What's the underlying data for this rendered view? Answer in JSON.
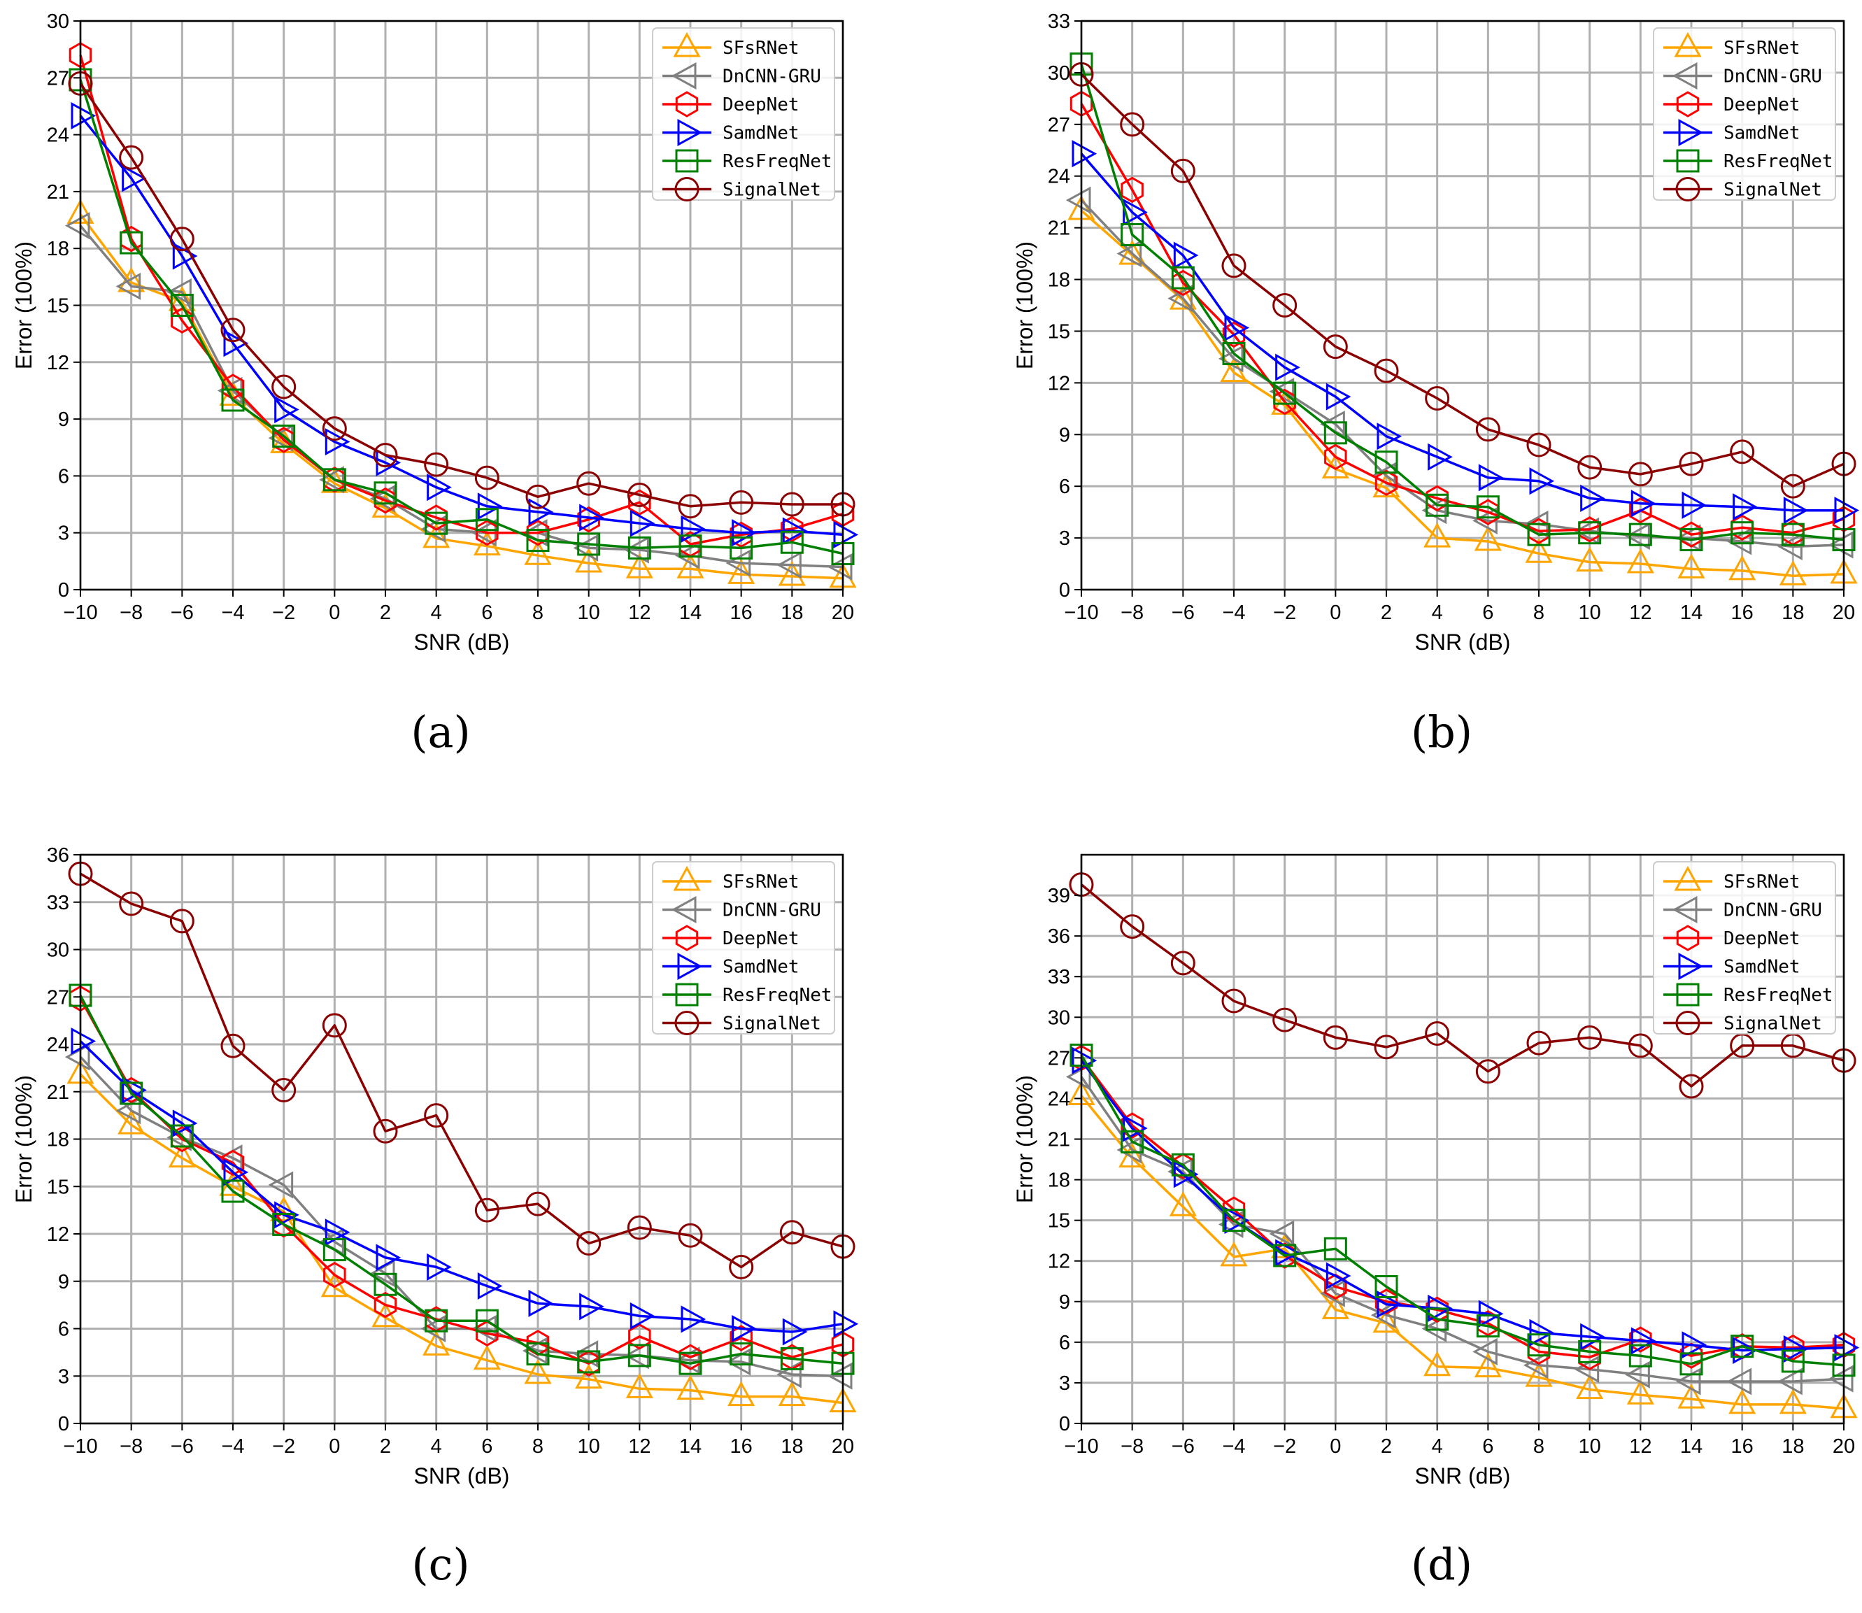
{
  "colors": {
    "SFsRNet": "#FFA500",
    "DnCNN-GRU": "#808080",
    "DeepNet": "#FF0000",
    "SamdNet": "#0000FF",
    "ResFreqNet": "#008000",
    "SignalNet": "#8B0000"
  },
  "markers": {
    "SFsRNet": "triangle-up",
    "DnCNN-GRU": "triangle-left",
    "DeepNet": "hexagon",
    "SamdNet": "triangle-right",
    "ResFreqNet": "square",
    "SignalNet": "circle"
  },
  "chart_data": [
    {
      "type": "line",
      "caption": "(a)",
      "xlabel": "SNR (dB)",
      "ylabel": "Error (100%)",
      "xlim": [
        -10,
        20
      ],
      "ylim": [
        0,
        30
      ],
      "xticks": [
        -10,
        -8,
        -6,
        -4,
        -2,
        0,
        2,
        4,
        6,
        8,
        10,
        12,
        14,
        16,
        18,
        20
      ],
      "yticks": [
        0,
        3,
        6,
        9,
        12,
        15,
        18,
        21,
        24,
        27,
        30
      ],
      "grid": true,
      "legend_position": "top-right",
      "x": [
        -10,
        -8,
        -6,
        -4,
        -2,
        0,
        2,
        4,
        6,
        8,
        10,
        12,
        14,
        16,
        18,
        20
      ],
      "series": [
        {
          "name": "SFsRNet",
          "values": [
            19.8,
            16.2,
            15.2,
            10.2,
            7.7,
            5.6,
            4.3,
            2.7,
            2.3,
            1.8,
            1.4,
            1.1,
            1.1,
            0.8,
            0.7,
            0.6
          ]
        },
        {
          "name": "DnCNN-GRU",
          "values": [
            19.2,
            16.0,
            15.7,
            10.5,
            8.0,
            5.8,
            4.8,
            3.2,
            3.0,
            3.0,
            2.2,
            2.1,
            1.8,
            1.4,
            1.3,
            1.2
          ]
        },
        {
          "name": "DeepNet",
          "values": [
            28.2,
            18.5,
            14.2,
            10.7,
            7.9,
            5.8,
            4.7,
            3.8,
            3.0,
            3.0,
            3.7,
            4.6,
            2.4,
            2.9,
            3.2,
            4.0
          ]
        },
        {
          "name": "SamdNet",
          "values": [
            25.0,
            21.7,
            17.6,
            13.0,
            9.5,
            7.8,
            6.7,
            5.4,
            4.4,
            4.1,
            3.8,
            3.5,
            3.2,
            3.0,
            3.1,
            2.9
          ]
        },
        {
          "name": "ResFreqNet",
          "values": [
            26.9,
            18.3,
            15.0,
            10.0,
            8.1,
            5.8,
            5.1,
            3.5,
            3.7,
            2.6,
            2.4,
            2.2,
            2.3,
            2.2,
            2.5,
            1.9
          ]
        },
        {
          "name": "SignalNet",
          "values": [
            26.7,
            22.8,
            18.5,
            13.7,
            10.7,
            8.5,
            7.1,
            6.6,
            5.9,
            4.9,
            5.6,
            5.0,
            4.4,
            4.6,
            4.5,
            4.5
          ]
        }
      ]
    },
    {
      "type": "line",
      "caption": "(b)",
      "xlabel": "SNR (dB)",
      "ylabel": "Error (100%)",
      "xlim": [
        -10,
        20
      ],
      "ylim": [
        0,
        33
      ],
      "xticks": [
        -10,
        -8,
        -6,
        -4,
        -2,
        0,
        2,
        4,
        6,
        8,
        10,
        12,
        14,
        16,
        18,
        20
      ],
      "yticks": [
        0,
        3,
        6,
        9,
        12,
        15,
        18,
        21,
        24,
        27,
        30,
        33
      ],
      "grid": true,
      "legend_position": "top-right",
      "x": [
        -10,
        -8,
        -6,
        -4,
        -2,
        0,
        2,
        4,
        6,
        8,
        10,
        12,
        14,
        16,
        18,
        20
      ],
      "series": [
        {
          "name": "SFsRNet",
          "values": [
            22.0,
            19.4,
            16.8,
            12.6,
            10.7,
            7.0,
            5.9,
            3.0,
            2.8,
            2.1,
            1.6,
            1.5,
            1.2,
            1.1,
            0.8,
            0.9
          ]
        },
        {
          "name": "DnCNN-GRU",
          "values": [
            22.6,
            19.5,
            16.9,
            13.4,
            11.5,
            9.6,
            6.6,
            4.6,
            4.0,
            3.8,
            3.4,
            3.1,
            3.0,
            2.8,
            2.5,
            2.6
          ]
        },
        {
          "name": "DeepNet",
          "values": [
            28.2,
            23.2,
            17.8,
            14.8,
            10.9,
            7.7,
            6.2,
            5.3,
            4.5,
            3.4,
            3.5,
            4.6,
            3.2,
            3.6,
            3.3,
            4.1
          ]
        },
        {
          "name": "SamdNet",
          "values": [
            25.3,
            21.9,
            19.4,
            15.2,
            12.9,
            11.2,
            8.9,
            7.7,
            6.5,
            6.3,
            5.3,
            5.0,
            4.9,
            4.8,
            4.6,
            4.6
          ]
        },
        {
          "name": "ResFreqNet",
          "values": [
            30.5,
            20.6,
            18.1,
            13.7,
            11.4,
            9.1,
            7.4,
            4.9,
            4.8,
            3.2,
            3.3,
            3.2,
            2.9,
            3.3,
            3.2,
            2.9
          ]
        },
        {
          "name": "SignalNet",
          "values": [
            29.9,
            27.0,
            24.3,
            18.8,
            16.5,
            14.1,
            12.7,
            11.1,
            9.3,
            8.4,
            7.1,
            6.7,
            7.3,
            8.0,
            6.0,
            7.3
          ]
        }
      ]
    },
    {
      "type": "line",
      "caption": "(c)",
      "xlabel": "SNR (dB)",
      "ylabel": "Error (100%)",
      "xlim": [
        -10,
        20
      ],
      "ylim": [
        0,
        36
      ],
      "xticks": [
        -10,
        -8,
        -6,
        -4,
        -2,
        0,
        2,
        4,
        6,
        8,
        10,
        12,
        14,
        16,
        18,
        20
      ],
      "yticks": [
        0,
        3,
        6,
        9,
        12,
        15,
        18,
        21,
        24,
        27,
        30,
        33,
        36
      ],
      "grid": true,
      "legend_position": "top-right",
      "x": [
        -10,
        -8,
        -6,
        -4,
        -2,
        0,
        2,
        4,
        6,
        8,
        10,
        12,
        14,
        16,
        18,
        20
      ],
      "series": [
        {
          "name": "SFsRNet",
          "values": [
            22.1,
            18.9,
            16.8,
            15.0,
            13.4,
            8.6,
            6.7,
            4.9,
            4.0,
            3.1,
            2.8,
            2.2,
            2.1,
            1.7,
            1.7,
            1.3
          ]
        },
        {
          "name": "DnCNN-GRU",
          "values": [
            23.2,
            19.8,
            18.1,
            16.8,
            15.1,
            11.5,
            9.5,
            6.0,
            6.0,
            4.6,
            4.4,
            4.3,
            4.0,
            3.9,
            3.1,
            3.0
          ]
        },
        {
          "name": "DeepNet",
          "values": [
            26.9,
            21.1,
            18.0,
            16.5,
            12.6,
            9.4,
            7.5,
            6.6,
            5.7,
            5.1,
            3.8,
            5.5,
            4.2,
            5.4,
            4.2,
            5.0
          ]
        },
        {
          "name": "SamdNet",
          "values": [
            24.2,
            21.1,
            19.0,
            15.9,
            13.2,
            12.1,
            10.5,
            9.9,
            8.7,
            7.6,
            7.4,
            6.8,
            6.6,
            6.0,
            5.8,
            6.3
          ]
        },
        {
          "name": "ResFreqNet",
          "values": [
            27.1,
            20.9,
            18.2,
            14.7,
            12.6,
            11.0,
            8.8,
            6.5,
            6.5,
            4.4,
            3.9,
            4.3,
            3.8,
            4.4,
            4.1,
            3.8
          ]
        },
        {
          "name": "SignalNet",
          "values": [
            34.8,
            32.9,
            31.8,
            23.9,
            21.1,
            25.2,
            18.5,
            19.5,
            13.5,
            13.9,
            11.4,
            12.4,
            11.9,
            9.9,
            12.1,
            11.2
          ]
        }
      ]
    },
    {
      "type": "line",
      "caption": "(d)",
      "xlabel": "SNR (dB)",
      "ylabel": "Error (100%)",
      "xlim": [
        -10,
        20
      ],
      "ylim": [
        0,
        42
      ],
      "xticks": [
        -10,
        -8,
        -6,
        -4,
        -2,
        0,
        2,
        4,
        6,
        8,
        10,
        12,
        14,
        16,
        18,
        20
      ],
      "yticks": [
        0,
        3,
        6,
        9,
        12,
        15,
        18,
        21,
        24,
        27,
        30,
        33,
        36,
        39
      ],
      "grid": true,
      "legend_position": "top-right",
      "x": [
        -10,
        -8,
        -6,
        -4,
        -2,
        0,
        2,
        4,
        6,
        8,
        10,
        12,
        14,
        16,
        18,
        20
      ],
      "series": [
        {
          "name": "SFsRNet",
          "values": [
            24.2,
            19.6,
            16.0,
            12.3,
            12.9,
            8.4,
            7.4,
            4.2,
            4.1,
            3.4,
            2.5,
            2.1,
            1.8,
            1.4,
            1.4,
            1.1
          ]
        },
        {
          "name": "DnCNN-GRU",
          "values": [
            25.6,
            20.2,
            18.6,
            14.7,
            14.0,
            9.6,
            8.0,
            7.0,
            5.3,
            4.3,
            4.0,
            3.6,
            3.1,
            3.1,
            3.1,
            3.3
          ]
        },
        {
          "name": "DeepNet",
          "values": [
            27.0,
            22.0,
            19.0,
            15.8,
            12.4,
            10.1,
            9.0,
            8.4,
            7.4,
            5.3,
            4.9,
            6.2,
            5.0,
            5.7,
            5.6,
            5.8
          ]
        },
        {
          "name": "SamdNet",
          "values": [
            26.8,
            21.8,
            18.4,
            15.0,
            12.6,
            10.9,
            8.8,
            8.5,
            8.1,
            6.7,
            6.4,
            6.1,
            5.8,
            5.4,
            5.5,
            5.6
          ]
        },
        {
          "name": "ResFreqNet",
          "values": [
            27.2,
            20.8,
            19.1,
            15.0,
            12.4,
            12.9,
            10.1,
            7.7,
            7.2,
            5.8,
            5.3,
            5.0,
            4.4,
            5.7,
            4.6,
            4.3
          ]
        },
        {
          "name": "SignalNet",
          "values": [
            39.8,
            36.7,
            34.0,
            31.2,
            29.8,
            28.5,
            27.8,
            28.8,
            26.0,
            28.1,
            28.5,
            27.9,
            24.9,
            27.9,
            27.9,
            26.8
          ]
        }
      ]
    }
  ]
}
